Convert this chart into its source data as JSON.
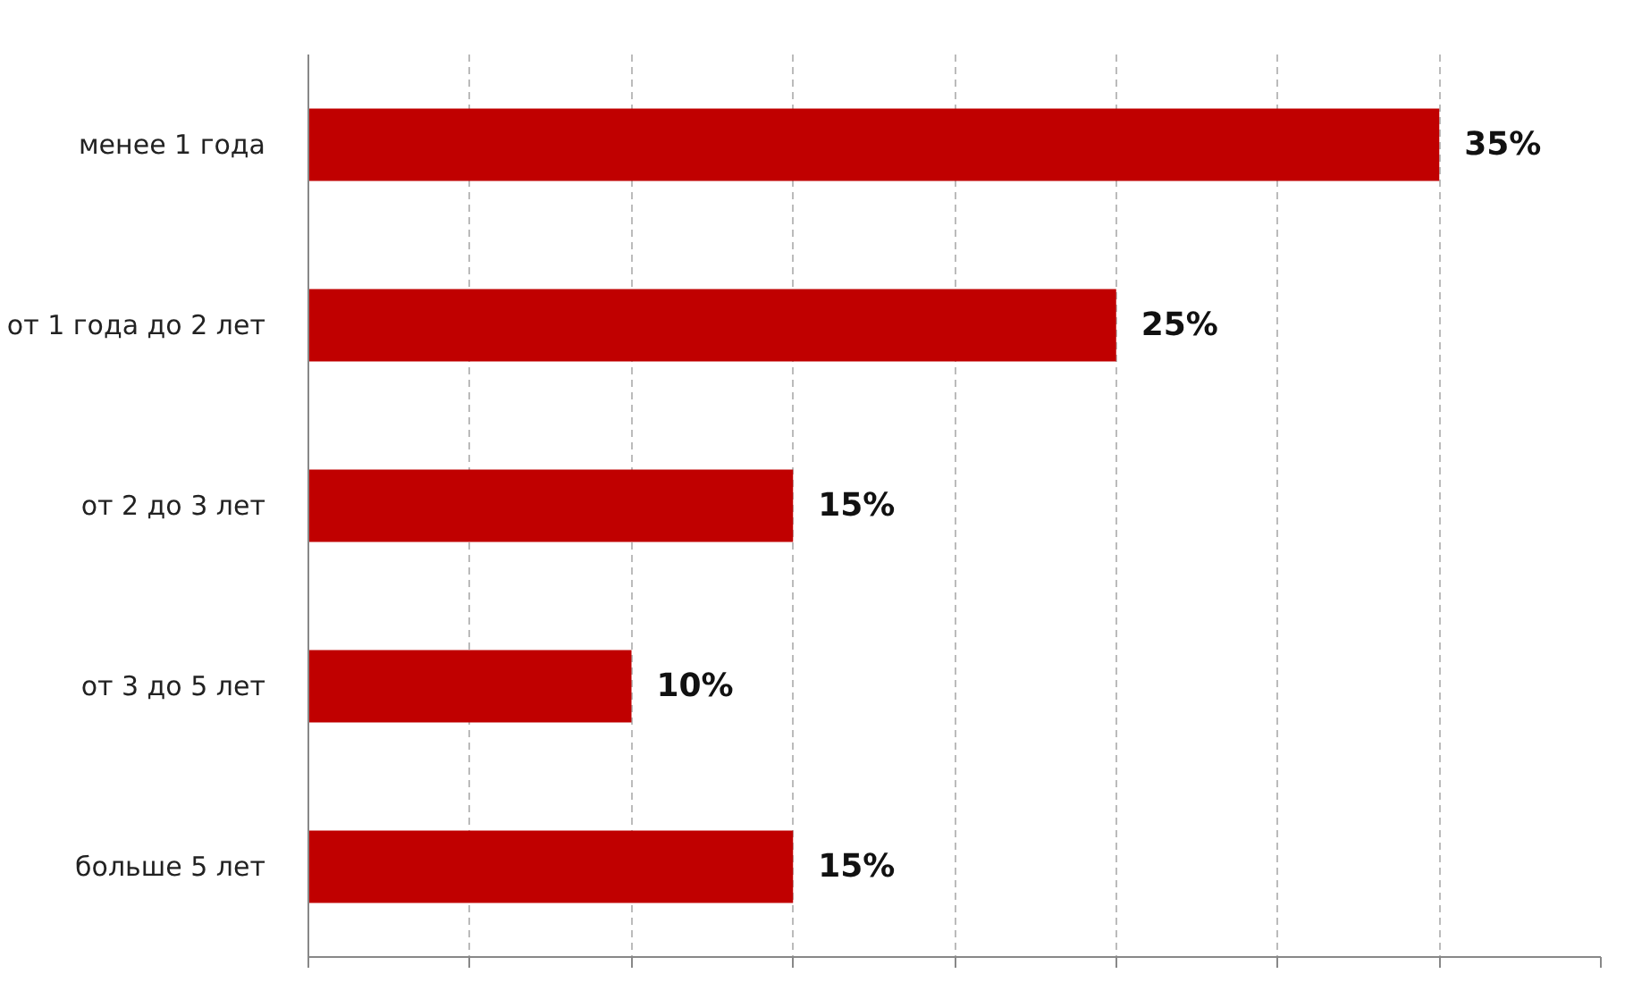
{
  "chart_data": {
    "type": "bar",
    "orientation": "horizontal",
    "categories": [
      "менее 1 года",
      "от 1 года до 2 лет",
      "от 2 до 3 лет",
      "от 3 до 5 лет",
      "больше 5 лет"
    ],
    "values": [
      35,
      25,
      15,
      10,
      15
    ],
    "value_labels": [
      "35%",
      "25%",
      "15%",
      "10%",
      "15%"
    ],
    "color": "#c00000",
    "xlim": [
      0,
      40
    ],
    "xticks": [
      {
        "value": 0,
        "label": null
      },
      {
        "value": 5,
        "label": null
      },
      {
        "value": 10,
        "label": null
      },
      {
        "value": 15,
        "label": null
      },
      {
        "value": 20,
        "label": null
      },
      {
        "value": 25,
        "label": null
      },
      {
        "value": 30,
        "label": null
      },
      {
        "value": 35,
        "label": null
      },
      {
        "value": 40,
        "label": null
      }
    ],
    "grid": "x",
    "tick_labels": "y"
  }
}
